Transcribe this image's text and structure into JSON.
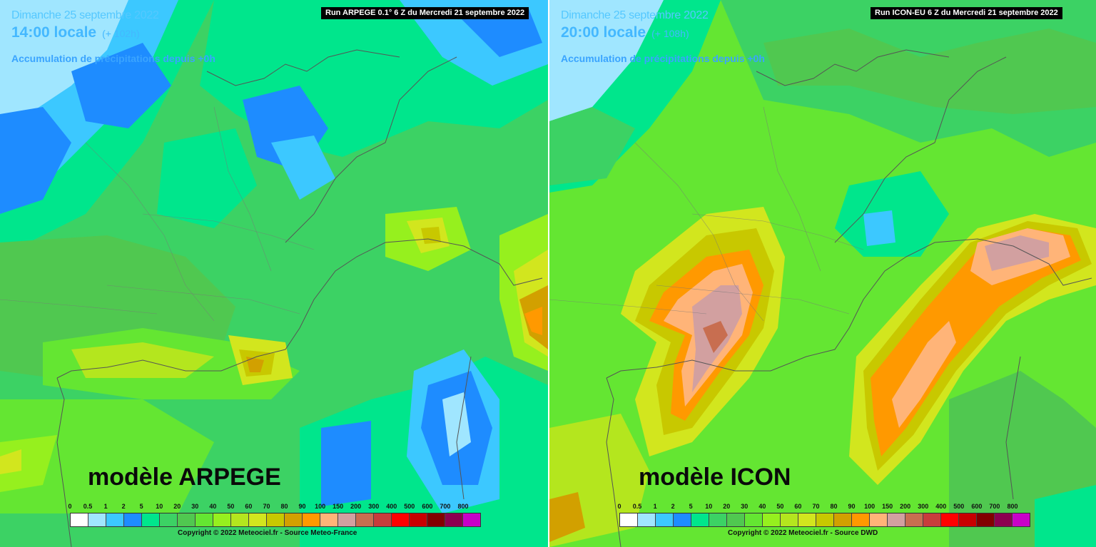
{
  "legend": {
    "values": [
      "0",
      "0.5",
      "1",
      "2",
      "5",
      "10",
      "20",
      "30",
      "40",
      "50",
      "60",
      "70",
      "80",
      "90",
      "100",
      "150",
      "200",
      "300",
      "400",
      "500",
      "600",
      "700",
      "800"
    ],
    "colors": [
      "#ffffff",
      "#a0e6ff",
      "#3cc8ff",
      "#1e8cff",
      "#00e68c",
      "#3cd264",
      "#50c850",
      "#64e632",
      "#96f01e",
      "#b4e61e",
      "#d2e61e",
      "#c8c800",
      "#d2a000",
      "#ff9900",
      "#ffb478",
      "#d2a0a0",
      "#c86e50",
      "#c83c3c",
      "#ff0000",
      "#c80000",
      "#820000",
      "#8c0050",
      "#c800c8"
    ]
  },
  "panels": [
    {
      "date": "Dimanche 25 septembre 2022",
      "time": "14:00 locale",
      "lead": "(+ 102h)",
      "accum": "Accumulation de précipitations depuis +0h",
      "run": "Run ARPEGE 0.1° 6 Z du Mercredi 21 septembre 2022",
      "model": "modèle ARPEGE",
      "copyright": "Copyright © 2022 Meteociel.fr - Source Meteo-France"
    },
    {
      "date": "Dimanche 25 septembre 2022",
      "time": "20:00 locale",
      "lead": "(+ 108h)",
      "accum": "Accumulation de précipitations depuis +0h",
      "run": "Run ICON-EU 6 Z du Mercredi 21 septembre 2022",
      "model": "modèle ICON",
      "copyright": "Copyright © 2022 Meteociel.fr - Source DWD"
    }
  ]
}
